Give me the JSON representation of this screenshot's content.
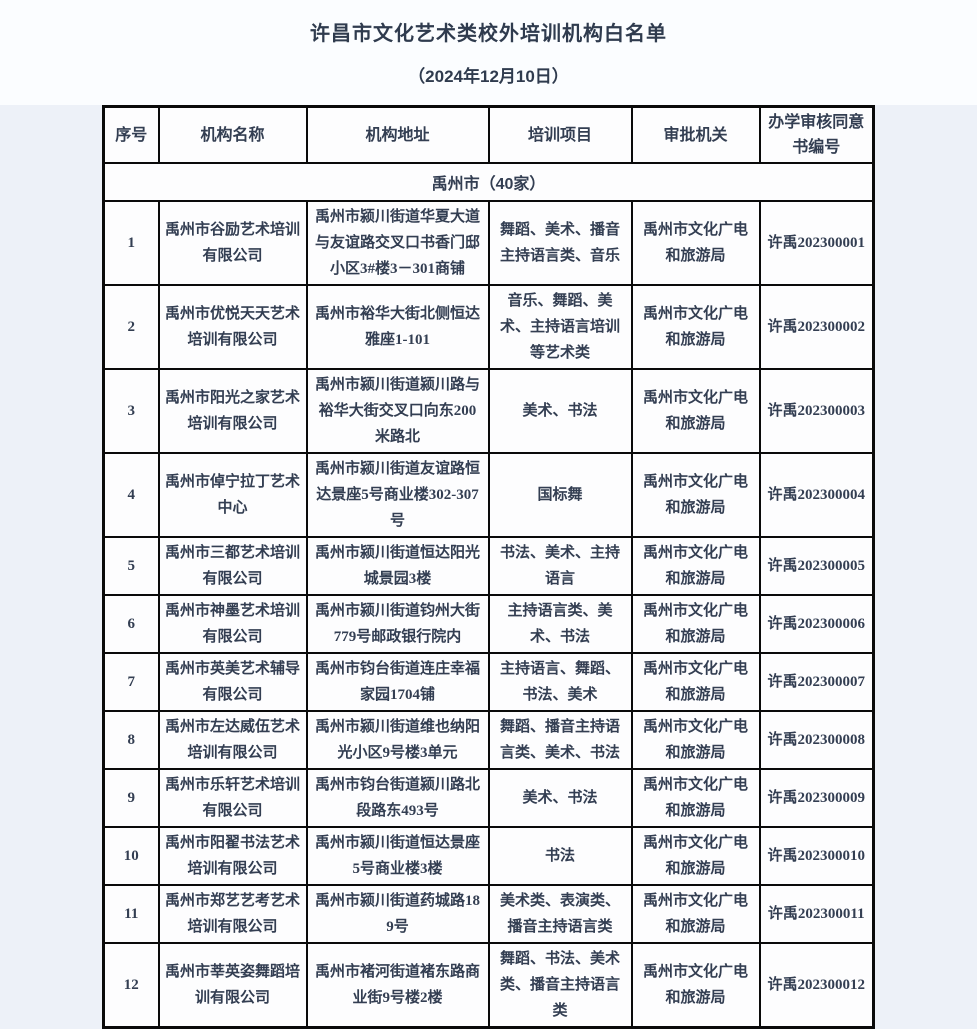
{
  "page": {
    "title": "许昌市文化艺术类校外培训机构白名单",
    "date_line": "（2024年12月10日）"
  },
  "table": {
    "columns": [
      "序号",
      "机构名称",
      "机构地址",
      "培训项目",
      "审批机关",
      "办学审核同意书编号"
    ],
    "section": "禹州市（40家）",
    "rows": [
      {
        "no": "1",
        "name": "禹州市谷励艺术培训有限公司",
        "address": "禹州市颍川街道华夏大道与友谊路交叉口书香门邸小区3#楼3－301商铺",
        "programs": "舞蹈、美术、播音主持语言类、音乐",
        "authority": "禹州市文化广电和旅游局",
        "license_no": "许禹202300001"
      },
      {
        "no": "2",
        "name": "禹州市优悦天天艺术培训有限公司",
        "address": "禹州市裕华大街北侧恒达雅座1-101",
        "programs": "音乐、舞蹈、美术、主持语言培训等艺术类",
        "authority": "禹州市文化广电和旅游局",
        "license_no": "许禹202300002"
      },
      {
        "no": "3",
        "name": "禹州市阳光之家艺术培训有限公司",
        "address": "禹州市颍川街道颍川路与裕华大街交叉口向东200米路北",
        "programs": "美术、书法",
        "authority": "禹州市文化广电和旅游局",
        "license_no": "许禹202300003"
      },
      {
        "no": "4",
        "name": "禹州市倬宁拉丁艺术中心",
        "address": "禹州市颍川街道友谊路恒达景座5号商业楼302-307号",
        "programs": "国标舞",
        "authority": "禹州市文化广电和旅游局",
        "license_no": "许禹202300004"
      },
      {
        "no": "5",
        "name": "禹州市三都艺术培训有限公司",
        "address": "禹州市颍川街道恒达阳光城景园3楼",
        "programs": "书法、美术、主持语言",
        "authority": "禹州市文化广电和旅游局",
        "license_no": "许禹202300005"
      },
      {
        "no": "6",
        "name": "禹州市神墨艺术培训有限公司",
        "address": "禹州市颍川街道钧州大街779号邮政银行院内",
        "programs": "主持语言类、美术、书法",
        "authority": "禹州市文化广电和旅游局",
        "license_no": "许禹202300006"
      },
      {
        "no": "7",
        "name": "禹州市英美艺术辅导有限公司",
        "address": "禹州市钧台街道连庄幸福家园1704铺",
        "programs": "主持语言、舞蹈、书法、美术",
        "authority": "禹州市文化广电和旅游局",
        "license_no": "许禹202300007"
      },
      {
        "no": "8",
        "name": "禹州市左达威伍艺术培训有限公司",
        "address": "禹州市颍川街道维也纳阳光小区9号楼3单元",
        "programs": "舞蹈、播音主持语言类、美术、书法",
        "authority": "禹州市文化广电和旅游局",
        "license_no": "许禹202300008"
      },
      {
        "no": "9",
        "name": "禹州市乐轩艺术培训有限公司",
        "address": "禹州市钧台街道颍川路北段路东493号",
        "programs": "美术、书法",
        "authority": "禹州市文化广电和旅游局",
        "license_no": "许禹202300009"
      },
      {
        "no": "10",
        "name": "禹州市阳翟书法艺术培训有限公司",
        "address": "禹州市颍川街道恒达景座5号商业楼3楼",
        "programs": "书法",
        "authority": "禹州市文化广电和旅游局",
        "license_no": "许禹202300010"
      },
      {
        "no": "11",
        "name": "禹州市郑艺艺考艺术培训有限公司",
        "address": "禹州市颍川街道药城路189号",
        "programs": "美术类、表演类、播音主持语言类",
        "authority": "禹州市文化广电和旅游局",
        "license_no": "许禹202300011"
      },
      {
        "no": "12",
        "name": "禹州市莘英姿舞蹈培训有限公司",
        "address": "禹州市褚河街道褚东路商业街9号楼2楼",
        "programs": "舞蹈、书法、美术类、播音主持语言类",
        "authority": "禹州市文化广电和旅游局",
        "license_no": "许禹202300012"
      }
    ]
  },
  "colors": {
    "text": "#333e52",
    "border": "#0a0a0a",
    "page_bg": "#edf1f8",
    "cell_bg": "#fdfdfe"
  }
}
